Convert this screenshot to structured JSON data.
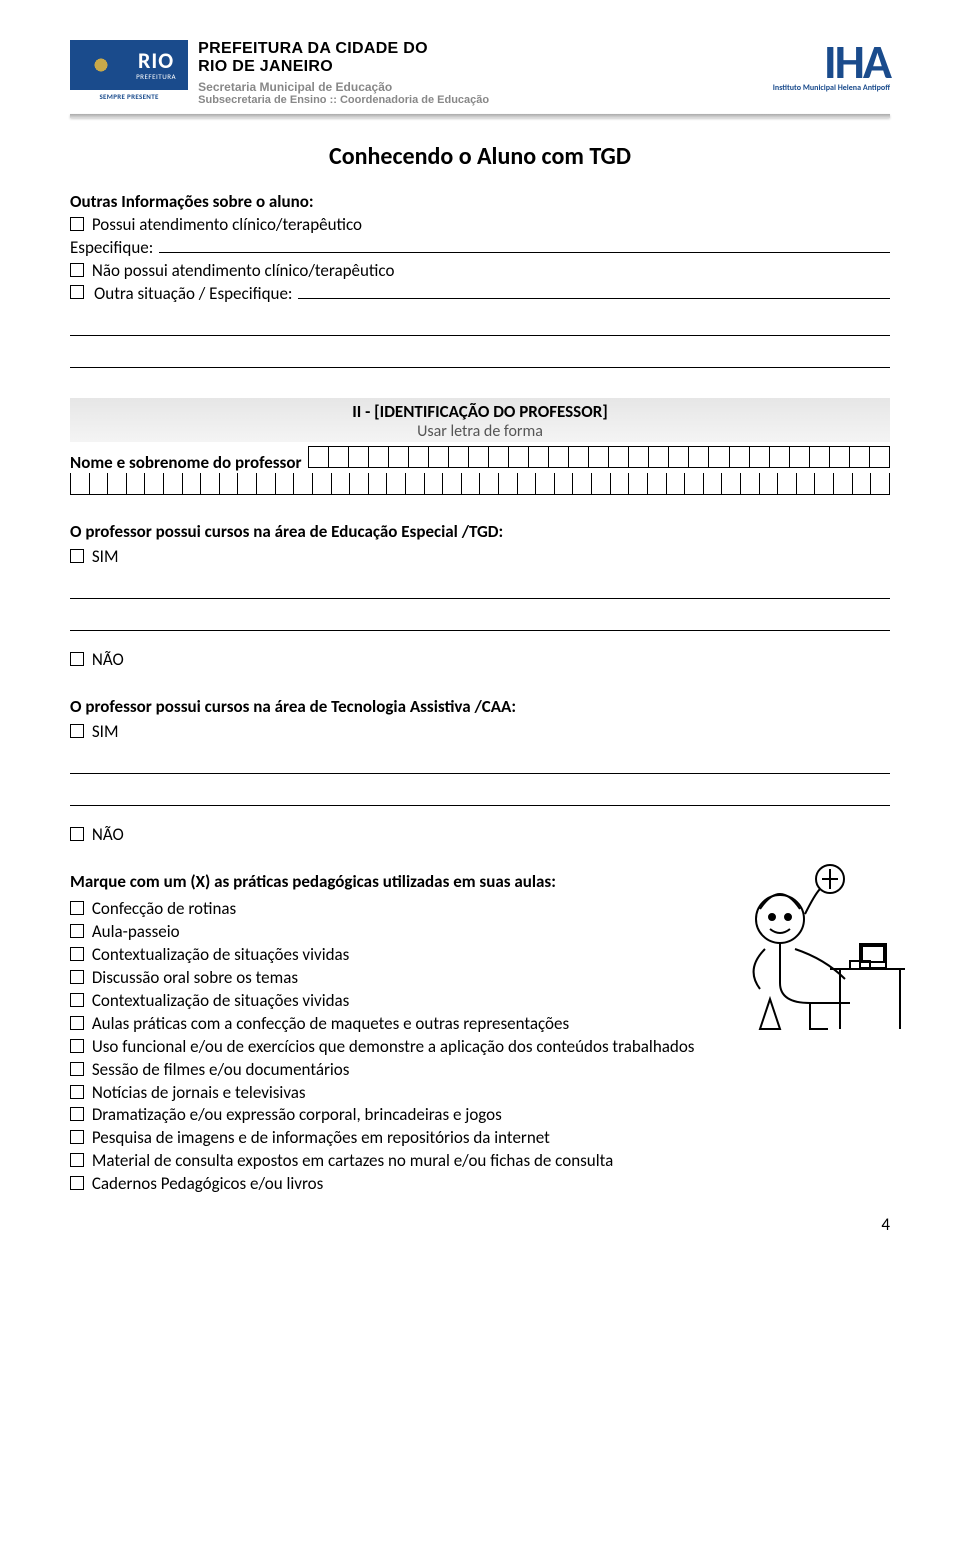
{
  "header": {
    "rio_label": "RIO",
    "rio_top": "PREFEITURA",
    "rio_sub": "SEMPRE PRESENTE",
    "prefeitura_l1": "PREFEITURA DA CIDADE DO",
    "prefeitura_l2": "RIO DE JANEIRO",
    "prefeitura_l3": "Secretaria Municipal de Educação",
    "prefeitura_l4": "Subsecretaria de Ensino :: Coordenadoria de Educação",
    "iha": "IHA",
    "iha_sub": "Instituto Municipal Helena Antipoff"
  },
  "doc_title": "Conhecendo o Aluno com TGD",
  "outras": {
    "label": "Outras Informações sobre o aluno:",
    "c1": "Possui atendimento clínico/terapêutico",
    "esp": "Especifique:",
    "c2": "Não possui atendimento clínico/terapêutico",
    "c3": "Outra situação / Especifique:"
  },
  "section2": {
    "title": "II - [IDENTIFICAÇÃO DO PROFESSOR]",
    "sub": "Usar letra de forma",
    "name_label": "Nome e sobrenome do professor",
    "cells_row1": 29,
    "cells_row2": 44
  },
  "q1": {
    "text": "O professor possui cursos na área de Educação Especial /TGD:",
    "sim": "SIM",
    "nao": "NÃO"
  },
  "q2": {
    "text": "O professor possui cursos na área de Tecnologia Assistiva /CAA:",
    "sim": "SIM",
    "nao": "NÃO"
  },
  "practices": {
    "title": "Marque com um (X) as práticas pedagógicas utilizadas em suas aulas:",
    "items": [
      "Confecção de rotinas",
      "Aula-passeio",
      "Contextualização de situações vividas",
      "Discussão oral sobre os temas",
      "Contextualização de situações vividas",
      "Aulas práticas com a confecção de maquetes e outras representações",
      "Uso funcional e/ou de exercícios que demonstre a aplicação dos conteúdos trabalhados",
      "Sessão de filmes e/ou documentários",
      "Notícias de jornais e televisivas",
      "Dramatização e/ou expressão corporal, brincadeiras e jogos",
      "Pesquisa de imagens e de informações em repositórios da internet",
      "Material de consulta expostos em cartazes no mural e/ou fichas de consulta",
      "Cadernos Pedagógicos e/ou livros"
    ]
  },
  "page_number": "4",
  "colors": {
    "brand_blue": "#1a4b8c",
    "band_bg": "#ececec",
    "text": "#000000",
    "muted": "#888888"
  }
}
